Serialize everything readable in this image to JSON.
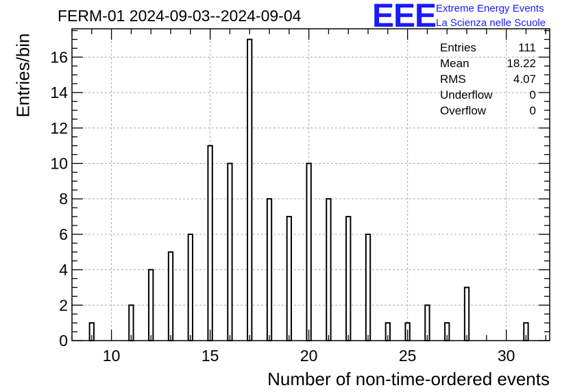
{
  "header": {
    "title": "FERM-01 2024-09-03--2024-09-04",
    "logo_text": "EEE",
    "logo_line1": "Extreme Energy Events",
    "logo_line2": "La Scienza nelle Scuole",
    "logo_color": "#1a1aff"
  },
  "stats": [
    {
      "label": "Entries",
      "value": "111"
    },
    {
      "label": "Mean",
      "value": "18.22"
    },
    {
      "label": "RMS",
      "value": "4.07"
    },
    {
      "label": "Underflow",
      "value": "0"
    },
    {
      "label": "Overflow",
      "value": "0"
    }
  ],
  "chart_data": {
    "type": "bar",
    "xlabel": "Number of non-time-ordered events",
    "ylabel": "Entries/bin",
    "xlim": [
      8,
      32.2
    ],
    "ylim": [
      0,
      17.6
    ],
    "grid": true,
    "x_ticks": [
      10,
      15,
      20,
      25,
      30
    ],
    "y_ticks": [
      0,
      2,
      4,
      6,
      8,
      10,
      12,
      14,
      16
    ],
    "x": [
      9,
      11,
      12,
      13,
      14,
      15,
      16,
      17,
      18,
      19,
      20,
      21,
      22,
      23,
      24,
      25,
      26,
      27,
      28,
      31
    ],
    "values": [
      1,
      2,
      4,
      5,
      6,
      11,
      10,
      17,
      8,
      7,
      10,
      8,
      7,
      6,
      1,
      1,
      2,
      1,
      3,
      1
    ]
  }
}
